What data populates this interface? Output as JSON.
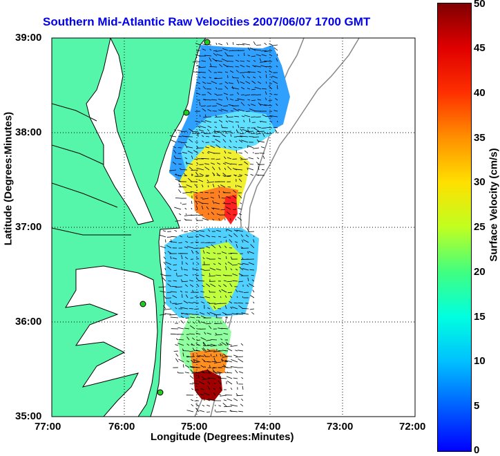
{
  "map": {
    "title": "Southern Mid-Atlantic Raw Velocities 2007/06/07 1700 GMT",
    "xlabel": "Longitude (Degrees:Minutes)",
    "ylabel": "Latitude (Degrees:Minutes)",
    "x_ticks": [
      "77:00",
      "76:00",
      "75:00",
      "74:00",
      "73:00",
      "72:00"
    ],
    "y_ticks": [
      "39:00",
      "38:00",
      "37:00",
      "36:00",
      "35:00"
    ],
    "grid": "dotted",
    "land_color": "#55f5aa",
    "water_color": "#ffffff",
    "coast_color": "#000000",
    "isobath_color": "#888888",
    "station_color": "#22cc22",
    "vector_color": "#000000"
  },
  "colorbar": {
    "label": "Surface Velocity (cm/s)",
    "ticks": [
      "50",
      "45",
      "40",
      "35",
      "30",
      "25",
      "20",
      "15",
      "10",
      "5",
      "0"
    ],
    "range": [
      0,
      50
    ],
    "colormap": "jet"
  }
}
